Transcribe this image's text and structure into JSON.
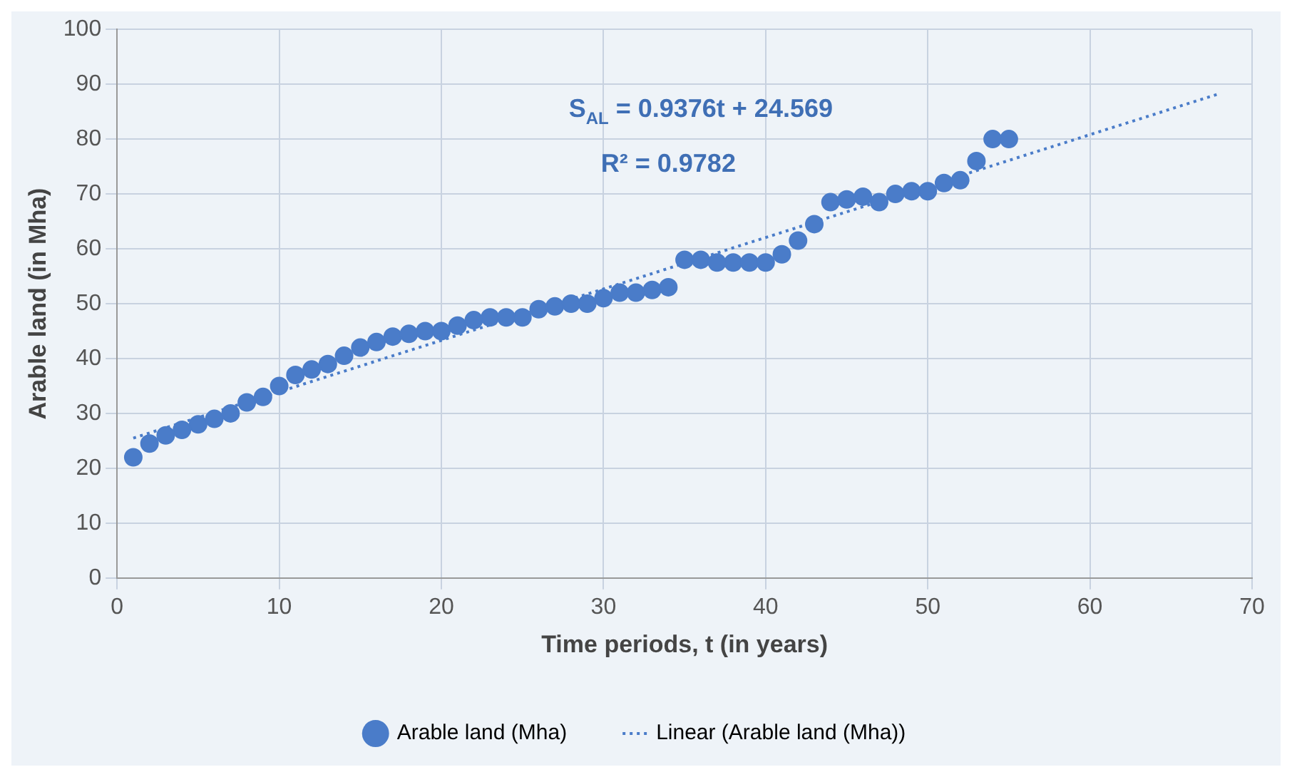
{
  "chart_data": {
    "type": "scatter",
    "xlabel": "Time periods, t (in years)",
    "ylabel": "Arable land (in Mha)",
    "x": [
      1,
      2,
      3,
      4,
      5,
      6,
      7,
      8,
      9,
      10,
      11,
      12,
      13,
      14,
      15,
      16,
      17,
      18,
      19,
      20,
      21,
      22,
      23,
      24,
      25,
      26,
      27,
      28,
      29,
      30,
      31,
      32,
      33,
      34,
      35,
      36,
      37,
      38,
      39,
      40,
      41,
      42,
      43,
      44,
      45,
      46,
      47,
      48,
      49,
      50,
      51,
      52,
      53,
      54,
      55
    ],
    "series": [
      {
        "name": "Arable land (Mha)",
        "color": "#4a7cc9",
        "marker": "circle",
        "values": [
          22,
          24.5,
          26,
          27,
          28,
          29,
          30,
          32,
          33,
          35,
          37,
          38,
          39,
          40.5,
          42,
          43,
          44,
          44.5,
          45,
          45,
          46,
          47,
          47.5,
          47.5,
          47.5,
          49,
          49.5,
          50,
          50,
          51,
          52,
          52,
          52.5,
          53,
          58,
          58,
          57.5,
          57.5,
          57.5,
          57.5,
          59,
          61.5,
          64.5,
          68.5,
          69,
          69.5,
          68.5,
          70,
          70.5,
          70.5,
          72,
          72.5,
          76,
          80,
          80
        ]
      },
      {
        "name": "Linear (Arable land (Mha))",
        "type": "line",
        "color": "#4a7cc9",
        "marker": "none",
        "line_style": "dotted",
        "x": [
          1,
          68
        ],
        "values": [
          25.5,
          88.3
        ]
      }
    ],
    "annotations": [
      "S$_{AL}$ = 0.9376t + 24.569",
      "R² = 0.9782"
    ],
    "xlim": [
      0,
      70
    ],
    "xticks": [
      0,
      10,
      20,
      30,
      40,
      50,
      60,
      70
    ],
    "ylim": [
      0,
      100
    ],
    "yticks": [
      0,
      10,
      20,
      30,
      40,
      50,
      60,
      70,
      80,
      90,
      100
    ],
    "grid": true,
    "legend": "bottom"
  }
}
